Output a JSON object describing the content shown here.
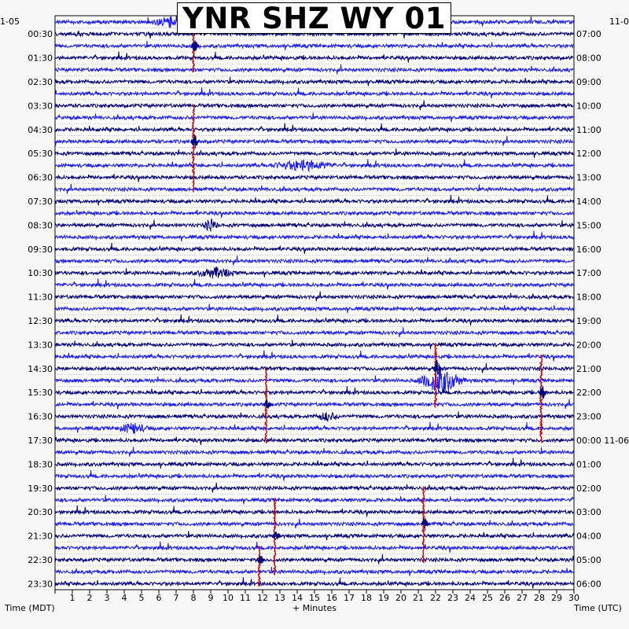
{
  "chart_data": {
    "type": "helicorder",
    "title": "YNR SHZ WY 01",
    "xlabel": "+ Minutes",
    "left_axis_label": "Time (MDT)",
    "right_axis_label": "Time (UTC)",
    "left_date_label": "1-05",
    "right_date_label": "11-0",
    "x_ticks": [
      "1",
      "2",
      "3",
      "4",
      "5",
      "6",
      "7",
      "8",
      "9",
      "10",
      "11",
      "12",
      "13",
      "14",
      "15",
      "16",
      "17",
      "18",
      "19",
      "20",
      "21",
      "22",
      "23",
      "24",
      "25",
      "26",
      "27",
      "28",
      "29",
      "30"
    ],
    "xlim": [
      0,
      30
    ],
    "trace_count": 48,
    "trace_minutes": 30,
    "left_times": [
      "00:30",
      "01:30",
      "02:30",
      "03:30",
      "04:30",
      "05:30",
      "06:30",
      "07:30",
      "08:30",
      "09:30",
      "10:30",
      "11:30",
      "12:30",
      "13:30",
      "14:30",
      "15:30",
      "16:30",
      "17:30",
      "18:30",
      "19:30",
      "20:30",
      "21:30",
      "22:30",
      "23:30"
    ],
    "right_times": [
      "07:00",
      "08:00",
      "09:00",
      "10:00",
      "11:00",
      "12:00",
      "13:00",
      "14:00",
      "15:00",
      "16:00",
      "17:00",
      "18:00",
      "19:00",
      "20:00",
      "21:00",
      "22:00",
      "23:00",
      "00:00 11-06",
      "01:00",
      "02:00",
      "03:00",
      "04:00",
      "05:00",
      "06:00"
    ],
    "trace_colors": [
      "#1a1aff",
      "#00007a"
    ],
    "event_color": "#cc0000",
    "events": [
      {
        "minute": 8.0,
        "trace_start": 0,
        "trace_end": 4,
        "amp": 9
      },
      {
        "minute": 8.0,
        "trace_start": 7,
        "trace_end": 14,
        "amp": 10
      },
      {
        "minute": 12.2,
        "trace_start": 29,
        "trace_end": 35,
        "amp": 8
      },
      {
        "minute": 22.0,
        "trace_start": 27,
        "trace_end": 32,
        "amp": 12
      },
      {
        "minute": 28.1,
        "trace_start": 28,
        "trace_end": 35,
        "amp": 10
      },
      {
        "minute": 21.3,
        "trace_start": 39,
        "trace_end": 45,
        "amp": 10
      },
      {
        "minute": 12.7,
        "trace_start": 40,
        "trace_end": 46,
        "amp": 7
      },
      {
        "minute": 11.8,
        "trace_start": 44,
        "trace_end": 47,
        "amp": 7
      }
    ],
    "noise_bursts": [
      {
        "trace": 0,
        "minute_start": 5.5,
        "minute_end": 8.5,
        "amp": 8
      },
      {
        "trace": 12,
        "minute_start": 12.2,
        "minute_end": 16.5,
        "amp": 6
      },
      {
        "trace": 17,
        "minute_start": 8.5,
        "minute_end": 9.5,
        "amp": 7
      },
      {
        "trace": 21,
        "minute_start": 8.0,
        "minute_end": 10.5,
        "amp": 6
      },
      {
        "trace": 30,
        "minute_start": 20.8,
        "minute_end": 23.8,
        "amp": 16
      },
      {
        "trace": 33,
        "minute_start": 15.0,
        "minute_end": 16.5,
        "amp": 5
      },
      {
        "trace": 34,
        "minute_start": 3.5,
        "minute_end": 5.5,
        "amp": 6
      }
    ]
  }
}
